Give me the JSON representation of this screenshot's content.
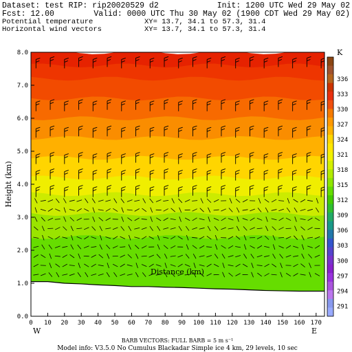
{
  "header": {
    "dataset_line": "Dataset: test   RIP: rip20020529  d2",
    "init_line": "Init: 1200 UTC Wed 29 May 02",
    "fcst_line": "Fcst:     12.00",
    "valid_line": "Valid: 0000 UTC Thu 30 May 02 (1900 CDT Wed 29 May 02)",
    "field1_name": "Potential temperature",
    "field1_xy": "XY=   13.7, 34.1  to   57.3, 31.4",
    "field2_name": "Horizontal wind vectors",
    "field2_xy": "XY=  13.7, 34.1  to   57.3, 31.4"
  },
  "footer": {
    "barb_line": "BARB VECTORS:  FULL BARB = 5 m s⁻¹",
    "model_line": "Model info: V3.5.0 No Cumulus Blackadar  Simple ice     4 km,   29 levels,    10 sec"
  },
  "chart_data": {
    "type": "heatmap",
    "title": "Potential temperature",
    "xlabel": "Distance (km)",
    "ylabel": "Height (km)",
    "xlim": [
      0,
      175
    ],
    "ylim": [
      0,
      8
    ],
    "x_ticks": [
      "0",
      "10",
      "20",
      "30",
      "40",
      "50",
      "60",
      "70",
      "80",
      "90",
      "100",
      "110",
      "120",
      "130",
      "140",
      "150",
      "160",
      "170"
    ],
    "y_ticks": [
      "0.0",
      "1.0",
      "2.0",
      "3.0",
      "4.0",
      "5.0",
      "6.0",
      "7.0",
      "8.0"
    ],
    "x_end_labels": {
      "left": "W",
      "right": "E"
    },
    "colorbar": {
      "unit": "K",
      "levels": [
        "336",
        "333",
        "330",
        "327",
        "324",
        "321",
        "318",
        "315",
        "312",
        "309",
        "306",
        "303",
        "300",
        "297",
        "294",
        "291"
      ],
      "colors": [
        "#8B4513",
        "#A0522D",
        "#B5651D",
        "#CC3300",
        "#E83010",
        "#F05010",
        "#F57A00",
        "#FF9900",
        "#FFB300",
        "#FFD700",
        "#FFE800",
        "#F2F200",
        "#D4F000",
        "#B2EB00",
        "#8FE600",
        "#66DD00",
        "#44CC00",
        "#2FBF2F",
        "#22AA66",
        "#1A9988",
        "#2277AA",
        "#3355CC",
        "#5544CC",
        "#7733CC",
        "#8822CC",
        "#9933DD",
        "#AA55DD",
        "#BB77EE",
        "#8899EE",
        "#99AAFF"
      ]
    },
    "terrain_height_km": {
      "x": [
        0,
        10,
        20,
        30,
        40,
        50,
        60,
        70,
        80,
        90,
        100,
        110,
        120,
        130,
        140,
        150,
        160,
        170,
        175
      ],
      "y": [
        1.05,
        1.05,
        1.0,
        0.98,
        0.95,
        0.93,
        0.9,
        0.9,
        0.88,
        0.87,
        0.85,
        0.83,
        0.82,
        0.8,
        0.78,
        0.77,
        0.76,
        0.76,
        0.76
      ]
    },
    "color_bands": [
      {
        "z_bottom": 7.6,
        "z_top": 8.0,
        "theta": "336",
        "color": "#E62200"
      },
      {
        "z_bottom": 7.2,
        "z_top": 7.6,
        "theta": "333",
        "color": "#EE3500"
      },
      {
        "z_bottom": 6.6,
        "z_top": 7.2,
        "theta": "330",
        "color": "#F24B00"
      },
      {
        "z_bottom": 6.0,
        "z_top": 6.6,
        "theta": "327",
        "color": "#F76A00"
      },
      {
        "z_bottom": 5.4,
        "z_top": 6.0,
        "theta": "324",
        "color": "#FA8D00"
      },
      {
        "z_bottom": 4.8,
        "z_top": 5.4,
        "theta": "321",
        "color": "#FFB000"
      },
      {
        "z_bottom": 4.2,
        "z_top": 4.8,
        "theta": "318",
        "color": "#FFD500"
      },
      {
        "z_bottom": 3.7,
        "z_top": 4.2,
        "theta": "315",
        "color": "#F0EE00"
      },
      {
        "z_bottom": 3.1,
        "z_top": 3.7,
        "theta": "312",
        "color": "#CCEB00"
      },
      {
        "z_bottom": 2.4,
        "z_top": 3.1,
        "theta": "312",
        "color": "#9AE400"
      },
      {
        "z_bottom": 0.0,
        "z_top": 2.4,
        "theta": "309",
        "color": "#66DD00"
      }
    ]
  }
}
